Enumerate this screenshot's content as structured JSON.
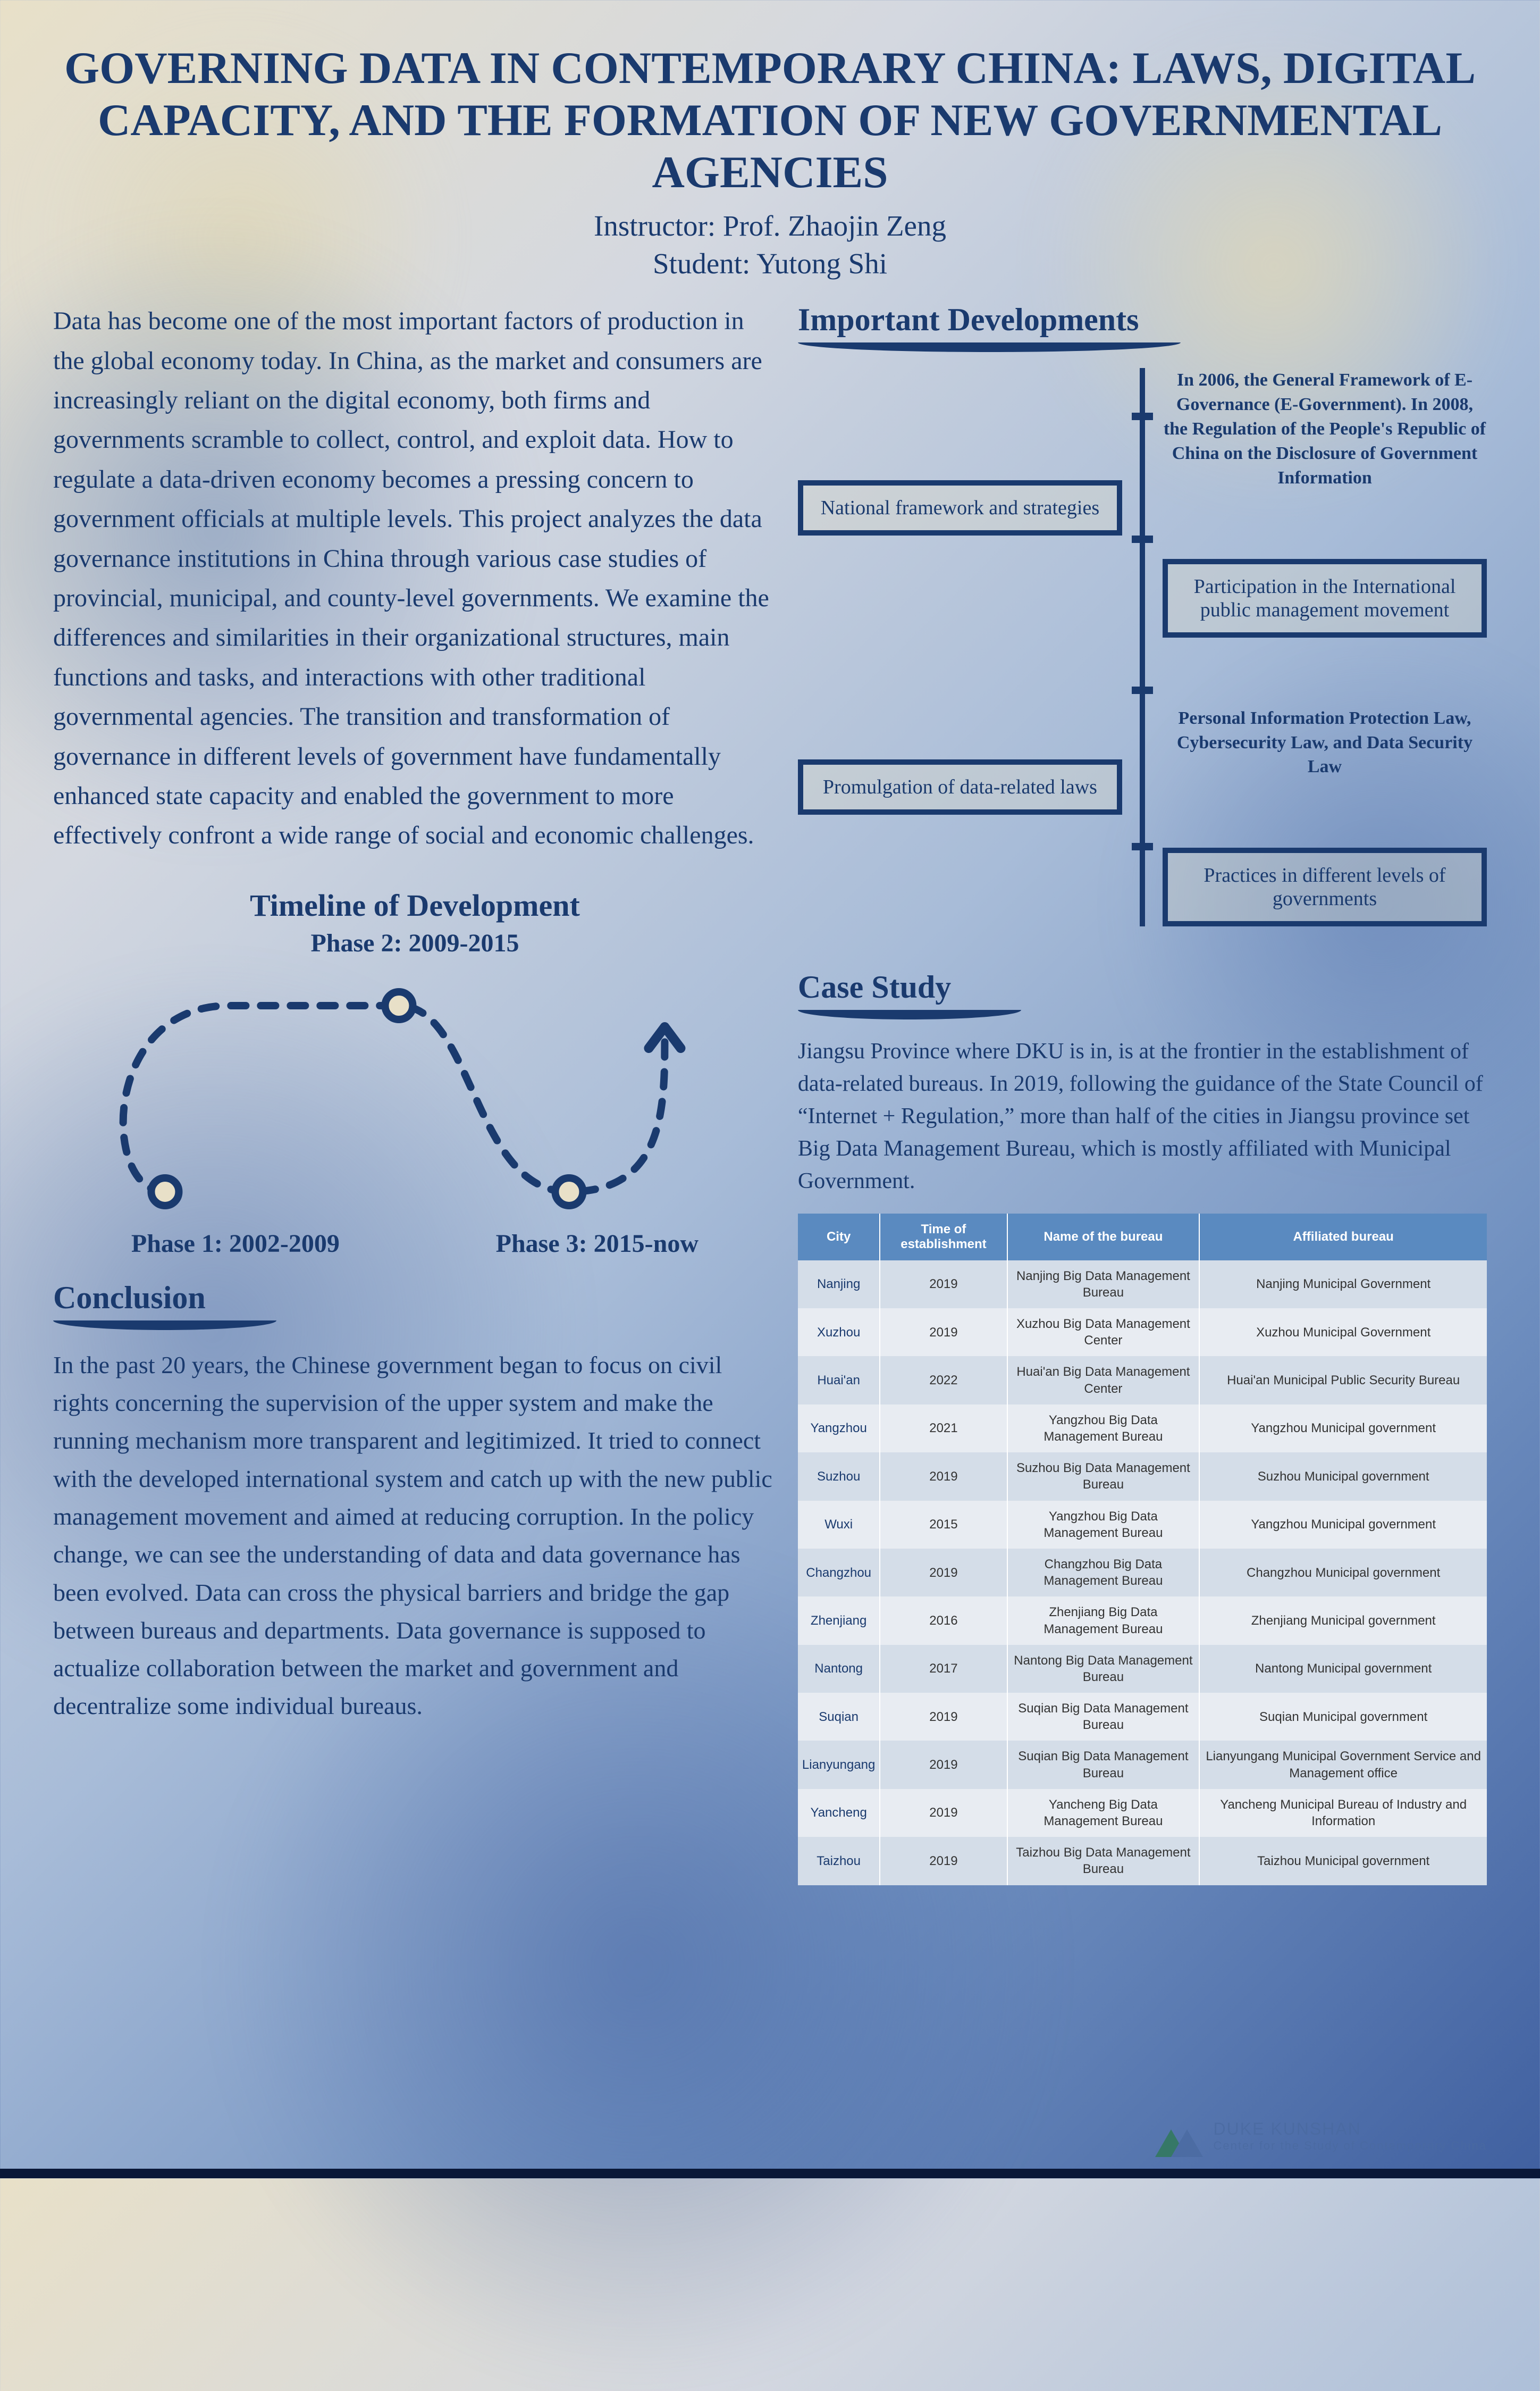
{
  "colors": {
    "heading": "#1a3a6e",
    "body": "#1a3a6e",
    "table_header_bg": "#5a8ac0",
    "table_header_fg": "#ffffff",
    "table_row_even": "#d4dde8",
    "table_row_odd": "#e8ecf2",
    "box_border": "#1a3a6e",
    "curve_stroke": "#1a3a6e"
  },
  "title": "GOVERNING DATA IN CONTEMPORARY CHINA: LAWS, DIGITAL CAPACITY, AND THE FORMATION OF NEW GOVERNMENTAL AGENCIES",
  "instructor": "Instructor: Prof. Zhaojin Zeng",
  "student": "Student: Yutong Shi",
  "abstract": "Data has become one of the most important factors of production in the global economy today. In China, as the market and consumers are increasingly reliant on the digital economy, both firms and governments scramble to collect, control, and exploit data. How to regulate a data-driven economy becomes a pressing concern to government officials at multiple levels. This project analyzes the data governance institutions in China through various case studies of provincial, municipal, and county-level governments. We examine the differences and similarities in their organizational structures, main functions and tasks, and interactions with other traditional governmental agencies. The transition and transformation of governance in different levels of government have fundamentally enhanced state capacity and enabled the government to more effectively confront a wide range of social and economic challenges.",
  "developments": {
    "heading": "Important Developments",
    "left": [
      "National framework and strategies",
      "Promulgation of data-related laws"
    ],
    "right_text": [
      "In 2006, the General Framework of E-Governance (E-Government). In 2008, the Regulation of the People's Republic of China on the Disclosure of Government Information",
      "Personal Information Protection Law, Cybersecurity Law, and Data Security Law"
    ],
    "right_box": [
      "Participation in the International public management movement",
      "Practices in different levels of governments"
    ]
  },
  "timeline": {
    "heading": "Timeline of Development",
    "phase_top": "Phase 2: 2009-2015",
    "phase_left": "Phase 1: 2002-2009",
    "phase_right": "Phase 3: 2015-now",
    "curve": {
      "stroke_width": 14,
      "dash": "28 28",
      "node_r": 26,
      "node_stroke": 14
    }
  },
  "conclusion": {
    "heading": "Conclusion",
    "text": "In the past 20 years, the Chinese government began to focus on civil rights concerning the supervision of the upper system and make the running mechanism more transparent and legitimized. It tried to connect with the developed international system and catch up with the new public management movement and aimed at reducing corruption. In the policy change, we can see the understanding of data and data governance has been evolved. Data can cross the physical barriers and bridge the gap between bureaus and departments. Data governance is supposed to actualize collaboration between the market and government and decentralize some individual bureaus."
  },
  "case": {
    "heading": "Case Study",
    "text": "Jiangsu Province where DKU is in, is at the frontier in the establishment of data-related bureaus. In 2019, following the guidance of the State Council of “Internet + Regulation,” more than half of the cities in Jiangsu province set Big Data Management Bureau, which is mostly affiliated with Municipal Government."
  },
  "table": {
    "columns": [
      "City",
      "Time of establishment",
      "Name of the bureau",
      "Affiliated bureau"
    ],
    "rows": [
      [
        "Nanjing",
        "2019",
        "Nanjing Big Data Management Bureau",
        "Nanjing Municipal Government"
      ],
      [
        "Xuzhou",
        "2019",
        "Xuzhou Big Data Management Center",
        "Xuzhou Municipal Government"
      ],
      [
        "Huai'an",
        "2022",
        "Huai'an Big Data Management Center",
        "Huai'an Municipal Public Security Bureau"
      ],
      [
        "Yangzhou",
        "2021",
        "Yangzhou Big Data Management Bureau",
        "Yangzhou Municipal government"
      ],
      [
        "Suzhou",
        "2019",
        "Suzhou Big Data Management Bureau",
        "Suzhou Municipal government"
      ],
      [
        "Wuxi",
        "2015",
        "Yangzhou Big Data Management Bureau",
        "Yangzhou Municipal government"
      ],
      [
        "Changzhou",
        "2019",
        "Changzhou Big Data Management Bureau",
        "Changzhou Municipal government"
      ],
      [
        "Zhenjiang",
        "2016",
        "Zhenjiang Big Data Management Bureau",
        "Zhenjiang Municipal government"
      ],
      [
        "Nantong",
        "2017",
        "Nantong Big Data Management Bureau",
        "Nantong Municipal government"
      ],
      [
        "Suqian",
        "2019",
        "Suqian Big Data Management Bureau",
        "Suqian Municipal government"
      ],
      [
        "Lianyungang",
        "2019",
        "Suqian Big Data Management Bureau",
        "Lianyungang Municipal Government Service and Management office"
      ],
      [
        "Yancheng",
        "2019",
        "Yancheng Big Data Management Bureau",
        "Yancheng Municipal Bureau of Industry and Information"
      ],
      [
        "Taizhou",
        "2019",
        "Taizhou Big Data Management Bureau",
        "Taizhou Municipal government"
      ]
    ]
  },
  "logo": {
    "line1": "DUKE KUNSHAN",
    "line2": "Center for the Study of Contemporary China"
  }
}
